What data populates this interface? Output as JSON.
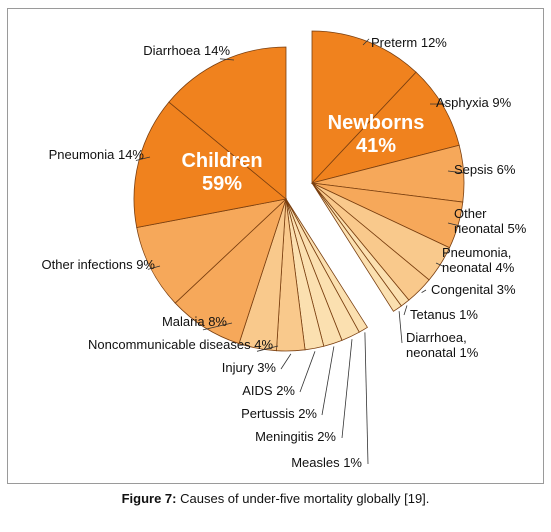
{
  "chart_data": {
    "type": "pie",
    "groups": [
      {
        "name": "Newborns",
        "value": "41%"
      },
      {
        "name": "Children",
        "value": "59%"
      }
    ],
    "slices": [
      {
        "label": "Preterm 12%",
        "group": "Newborns",
        "value": 12
      },
      {
        "label": "Asphyxia 9%",
        "group": "Newborns",
        "value": 9
      },
      {
        "label": "Sepsis 6%",
        "group": "Newborns",
        "value": 6
      },
      {
        "label": "Other neonatal 5%",
        "group": "Newborns",
        "value": 5
      },
      {
        "label": "Pneumonia, neonatal 4%",
        "group": "Newborns",
        "value": 4
      },
      {
        "label": "Congenital 3%",
        "group": "Newborns",
        "value": 3
      },
      {
        "label": "Tetanus 1%",
        "group": "Newborns",
        "value": 1
      },
      {
        "label": "Diarrhoea, neonatal 1%",
        "group": "Newborns",
        "value": 1
      },
      {
        "label": "Measles 1%",
        "group": "Children",
        "value": 1
      },
      {
        "label": "Meningitis 2%",
        "group": "Children",
        "value": 2
      },
      {
        "label": "Pertussis 2%",
        "group": "Children",
        "value": 2
      },
      {
        "label": "AIDS 2%",
        "group": "Children",
        "value": 2
      },
      {
        "label": "Injury 3%",
        "group": "Children",
        "value": 3
      },
      {
        "label": "Noncommunicable diseases 4%",
        "group": "Children",
        "value": 4
      },
      {
        "label": "Malaria 8%",
        "group": "Children",
        "value": 8
      },
      {
        "label": "Other infections 9%",
        "group": "Children",
        "value": 9
      },
      {
        "label": "Pneumonia 14%",
        "group": "Children",
        "value": 14
      },
      {
        "label": "Diarrhoea 14%",
        "group": "Children",
        "value": 14
      }
    ],
    "colors": {
      "dark": "#f0821e",
      "mid": "#f6a85a",
      "light": "#f9c98c",
      "pale": "#fbe0b0",
      "stroke": "#7a3f10"
    }
  },
  "caption": {
    "prefix": "Figure 7:",
    "text": " Causes of under-five mortality globally [19]."
  }
}
